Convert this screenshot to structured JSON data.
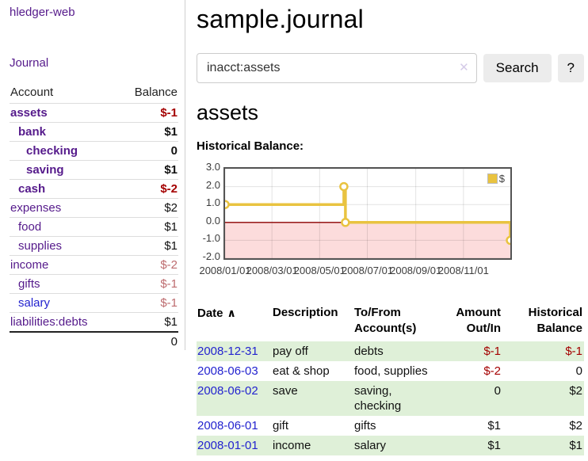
{
  "app": {
    "brand": "hledger-web",
    "nav_journal": "Journal"
  },
  "colors": {
    "link_purple": "#551a8b",
    "link_blue": "#2323cf",
    "negative_dark": "#a40000",
    "negative_light": "#bd6b6e",
    "row_green": "#dff0d8",
    "chart_gold": "#e9c340",
    "chart_negative_fill": "#fcdcdc",
    "chart_zero_line": "#8b0000"
  },
  "sidebar": {
    "headers": {
      "account": "Account",
      "balance": "Balance"
    },
    "accounts": [
      {
        "name": "assets",
        "balance": "$-1",
        "indent": 0,
        "bold": true,
        "link_color": "purple",
        "balance_color": "neg-dark"
      },
      {
        "name": "bank",
        "balance": "$1",
        "indent": 1,
        "bold": true,
        "link_color": "purple",
        "balance_color": "normal"
      },
      {
        "name": "checking",
        "balance": "0",
        "indent": 2,
        "bold": true,
        "link_color": "purple",
        "balance_color": "normal"
      },
      {
        "name": "saving",
        "balance": "$1",
        "indent": 2,
        "bold": true,
        "link_color": "purple",
        "balance_color": "normal"
      },
      {
        "name": "cash",
        "balance": "$-2",
        "indent": 1,
        "bold": true,
        "link_color": "purple",
        "balance_color": "neg-dark"
      },
      {
        "name": "expenses",
        "balance": "$2",
        "indent": 0,
        "bold": false,
        "link_color": "purple",
        "balance_color": "normal"
      },
      {
        "name": "food",
        "balance": "$1",
        "indent": 1,
        "bold": false,
        "link_color": "purple",
        "balance_color": "normal"
      },
      {
        "name": "supplies",
        "balance": "$1",
        "indent": 1,
        "bold": false,
        "link_color": "purple",
        "balance_color": "normal"
      },
      {
        "name": "income",
        "balance": "$-2",
        "indent": 0,
        "bold": false,
        "link_color": "purple",
        "balance_color": "neg-light"
      },
      {
        "name": "gifts",
        "balance": "$-1",
        "indent": 1,
        "bold": false,
        "link_color": "purple",
        "balance_color": "neg-light"
      },
      {
        "name": "salary",
        "balance": "$-1",
        "indent": 1,
        "bold": false,
        "link_color": "blue",
        "balance_color": "neg-light"
      },
      {
        "name": "liabilities:debts",
        "balance": "$1",
        "indent": 0,
        "bold": false,
        "link_color": "purple",
        "balance_color": "normal"
      }
    ],
    "total": "0"
  },
  "main": {
    "title": "sample.journal",
    "search": {
      "value": "inacct:assets",
      "clear_icon": "✕",
      "button_label": "Search",
      "help_label": "?"
    },
    "account_heading": "assets",
    "chart_heading": "Historical Balance:"
  },
  "chart_data": {
    "type": "line",
    "title": "Historical Balance",
    "xlim": [
      0,
      365
    ],
    "ylim": [
      -2,
      3
    ],
    "y_ticks": [
      "3.0",
      "2.0",
      "1.0",
      "0.0",
      "-1.0",
      "-2.0"
    ],
    "y_tick_values": [
      3,
      2,
      1,
      0,
      -1,
      -2
    ],
    "x_ticks": [
      {
        "pos": 0,
        "label": "2008/01/01"
      },
      {
        "pos": 60,
        "label": "2008/03/01"
      },
      {
        "pos": 121,
        "label": "2008/05/01"
      },
      {
        "pos": 182,
        "label": "2008/07/01"
      },
      {
        "pos": 244,
        "label": "2008/09/01"
      },
      {
        "pos": 305,
        "label": "2008/11/01"
      }
    ],
    "legend": "$",
    "series": [
      {
        "name": "$",
        "points": [
          [
            0,
            1
          ],
          [
            152,
            1
          ],
          [
            152,
            2
          ],
          [
            154,
            2
          ],
          [
            154,
            0
          ],
          [
            365,
            0
          ],
          [
            365,
            -1
          ]
        ],
        "markers": [
          [
            0,
            1
          ],
          [
            152,
            2
          ],
          [
            154,
            0
          ],
          [
            365,
            -1
          ]
        ]
      }
    ],
    "negative_region_below": 0,
    "grid": true,
    "legend_position": "top-right"
  },
  "register": {
    "headers": {
      "date": "Date",
      "sort_icon": "∧",
      "description": "Description",
      "accounts": "To/From\nAccount(s)",
      "amount": "Amount\nOut/In",
      "balance": "Historical\nBalance"
    },
    "rows": [
      {
        "date": "2008-12-31",
        "description": "pay off",
        "accounts": "debts",
        "amount": "$-1",
        "amount_neg": true,
        "balance": "$-1",
        "balance_neg": true
      },
      {
        "date": "2008-06-03",
        "description": "eat & shop",
        "accounts": "food, supplies",
        "amount": "$-2",
        "amount_neg": true,
        "balance": "0",
        "balance_neg": false
      },
      {
        "date": "2008-06-02",
        "description": "save",
        "accounts": "saving, checking",
        "amount": "0",
        "amount_neg": false,
        "balance": "$2",
        "balance_neg": false
      },
      {
        "date": "2008-06-01",
        "description": "gift",
        "accounts": "gifts",
        "amount": "$1",
        "amount_neg": false,
        "balance": "$2",
        "balance_neg": false
      },
      {
        "date": "2008-01-01",
        "description": "income",
        "accounts": "salary",
        "amount": "$1",
        "amount_neg": false,
        "balance": "$1",
        "balance_neg": false
      }
    ]
  }
}
